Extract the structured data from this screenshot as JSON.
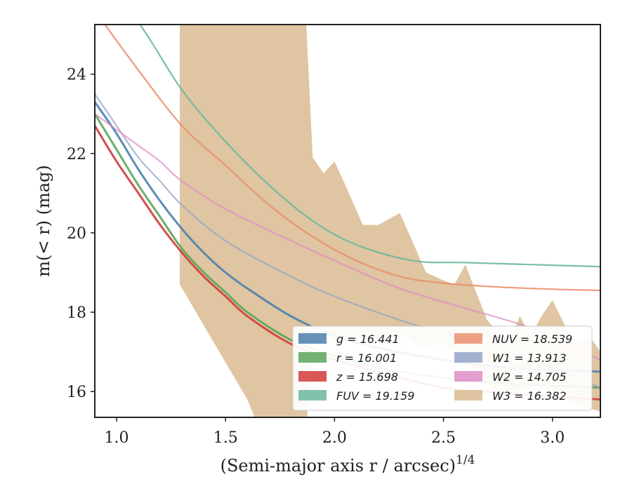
{
  "chart_data": {
    "type": "line",
    "xlabel": "(Semi-major axis r / arcsec)^1/4",
    "ylabel": "m(< r) (mag)",
    "xlim": [
      0.9,
      3.22
    ],
    "ylim": [
      25.25,
      15.35
    ],
    "xticks": [
      "1.0",
      "1.5",
      "2.0",
      "2.5",
      "3.0"
    ],
    "yticks": [
      "16",
      "18",
      "20",
      "22",
      "24"
    ],
    "y_inverted": true,
    "legend_position": "lower-right",
    "series": [
      {
        "name": "g = 16.441",
        "color": "#4c7fad",
        "x": [
          0.9,
          1.0,
          1.1,
          1.2,
          1.3,
          1.4,
          1.5,
          1.6,
          1.8,
          2.0,
          2.2,
          2.5,
          2.8,
          3.22
        ],
        "y": [
          23.3,
          22.5,
          21.6,
          20.8,
          20.1,
          19.5,
          19.0,
          18.6,
          17.9,
          17.4,
          17.1,
          16.8,
          16.6,
          16.5
        ]
      },
      {
        "name": "r = 16.001",
        "color": "#5aa55a",
        "x": [
          0.9,
          1.0,
          1.1,
          1.2,
          1.3,
          1.4,
          1.5,
          1.6,
          1.8,
          2.0,
          2.2,
          2.5,
          2.8,
          3.22
        ],
        "y": [
          23.0,
          22.1,
          21.2,
          20.4,
          19.6,
          19.0,
          18.5,
          18.0,
          17.3,
          16.9,
          16.6,
          16.35,
          16.2,
          16.1
        ]
      },
      {
        "name": "z = 15.698",
        "color": "#d13b3b",
        "x": [
          0.9,
          1.0,
          1.1,
          1.2,
          1.3,
          1.4,
          1.5,
          1.6,
          1.8,
          2.0,
          2.2,
          2.5,
          2.8,
          3.22
        ],
        "y": [
          22.7,
          21.8,
          21.0,
          20.2,
          19.5,
          18.9,
          18.4,
          17.9,
          17.2,
          16.8,
          16.5,
          16.1,
          15.95,
          15.8
        ]
      },
      {
        "name": "FUV = 19.159",
        "color": "#6bb79f",
        "x": [
          0.9,
          1.1,
          1.3,
          1.5,
          1.7,
          1.9,
          2.1,
          2.36,
          2.6,
          2.9,
          3.22
        ],
        "y": [
          26.5,
          25.3,
          23.6,
          22.3,
          21.2,
          20.3,
          19.7,
          19.3,
          19.25,
          19.2,
          19.15
        ]
      },
      {
        "name": "NUV = 18.539",
        "color": "#eb8f6e",
        "x": [
          0.9,
          1.1,
          1.3,
          1.5,
          1.7,
          1.9,
          2.1,
          2.3,
          2.47,
          2.7,
          3.0,
          3.22
        ],
        "y": [
          25.6,
          24.1,
          22.7,
          21.7,
          20.7,
          19.9,
          19.3,
          18.9,
          18.75,
          18.65,
          18.58,
          18.55
        ]
      },
      {
        "name": "W1 = 13.913",
        "color": "#93a3c8",
        "x": [
          0.9,
          1.0,
          1.1,
          1.2,
          1.3,
          1.5,
          1.8,
          2.0,
          2.3,
          2.6,
          2.9,
          3.22
        ],
        "y": [
          23.5,
          22.7,
          21.9,
          21.3,
          20.7,
          19.8,
          18.9,
          18.4,
          17.8,
          17.3,
          16.8,
          16.1
        ]
      },
      {
        "name": "W2 = 14.705",
        "color": "#de8ec6",
        "x": [
          0.9,
          1.0,
          1.1,
          1.2,
          1.3,
          1.5,
          1.8,
          2.0,
          2.3,
          2.6,
          2.9,
          3.22
        ],
        "y": [
          23.0,
          22.6,
          22.2,
          21.8,
          21.3,
          20.6,
          19.8,
          19.3,
          18.6,
          18.1,
          17.6,
          16.8
        ]
      },
      {
        "name": "W3 = 16.382",
        "color": "#d9bb91",
        "x": [
          1.29,
          1.4,
          1.5,
          1.6,
          1.7,
          1.8,
          1.87,
          1.9,
          1.95,
          2.0,
          2.1,
          2.2,
          2.3,
          2.4,
          2.5,
          2.6,
          2.7,
          2.8,
          2.9,
          3.0,
          3.1,
          3.22
        ],
        "y": [
          20.0,
          19.7,
          19.3,
          19.0,
          18.8,
          18.6,
          18.5,
          19.5,
          19.8,
          19.6,
          19.4,
          19.2,
          19.0,
          18.8,
          18.4,
          18.2,
          17.9,
          17.6,
          17.3,
          17.1,
          16.8,
          16.6
        ]
      }
    ]
  }
}
